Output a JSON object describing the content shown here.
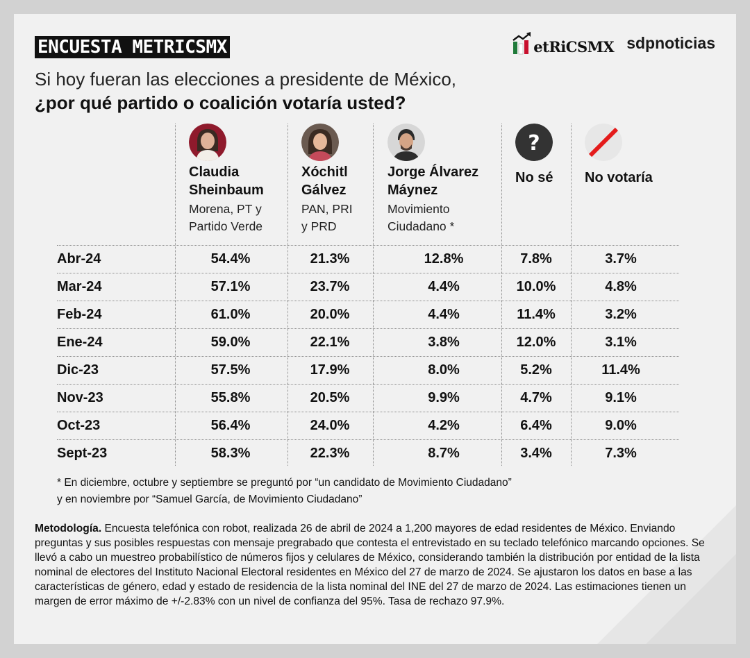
{
  "header": {
    "badge": "ENCUESTA METRICSMX",
    "question_line1": "Si hoy fueran las elecciones a presidente de México,",
    "question_line2": "¿por qué partido o coalición votaría usted?"
  },
  "logos": {
    "metrics": "etRiCSMX",
    "sdp": "sdpnoticias"
  },
  "colors": {
    "badge_bg": "#111111",
    "card_bg": "#f1f1f1",
    "page_bg": "#d2d2d2",
    "mexico_green": "#1f7a3a",
    "mexico_red": "#c8102e",
    "no_votaria_red": "#e41b1b",
    "no_se_dark": "#333333"
  },
  "columns": [
    {
      "name_line1": "Claudia",
      "name_line2": "Sheinbaum",
      "party_line1": "Morena, PT y",
      "party_line2": "Partido Verde",
      "icon": "candidate-photo"
    },
    {
      "name_line1": "Xóchitl",
      "name_line2": "Gálvez",
      "party_line1": "PAN, PRI",
      "party_line2": "y PRD",
      "icon": "candidate-photo"
    },
    {
      "name_line1": "Jorge Álvarez",
      "name_line2": "Máynez",
      "party_line1": "Movimiento",
      "party_line2": "Ciudadano *",
      "icon": "candidate-photo"
    },
    {
      "label": "No sé",
      "icon": "question-icon"
    },
    {
      "label": "No votaría",
      "icon": "slash-icon"
    }
  ],
  "chart_data": {
    "type": "table",
    "title": "Si hoy fueran las elecciones a presidente de México, ¿por qué partido o coalición votaría usted?",
    "series_names": [
      "Claudia Sheinbaum",
      "Xóchitl Gálvez",
      "Jorge Álvarez Máynez",
      "No sé",
      "No votaría"
    ],
    "rows": [
      {
        "month": "Abr-24",
        "values": [
          "54.4%",
          "21.3%",
          "12.8%",
          "7.8%",
          "3.7%"
        ]
      },
      {
        "month": "Mar-24",
        "values": [
          "57.1%",
          "23.7%",
          "4.4%",
          "10.0%",
          "4.8%"
        ]
      },
      {
        "month": "Feb-24",
        "values": [
          "61.0%",
          "20.0%",
          "4.4%",
          "11.4%",
          "3.2%"
        ]
      },
      {
        "month": "Ene-24",
        "values": [
          "59.0%",
          "22.1%",
          "3.8%",
          "12.0%",
          "3.1%"
        ]
      },
      {
        "month": "Dic-23",
        "values": [
          "57.5%",
          "17.9%",
          "8.0%",
          "5.2%",
          "11.4%"
        ]
      },
      {
        "month": "Nov-23",
        "values": [
          "55.8%",
          "20.5%",
          "9.9%",
          "4.7%",
          "9.1%"
        ]
      },
      {
        "month": "Oct-23",
        "values": [
          "56.4%",
          "24.0%",
          "4.2%",
          "6.4%",
          "9.0%"
        ]
      },
      {
        "month": "Sept-23",
        "values": [
          "58.3%",
          "22.3%",
          "8.7%",
          "3.4%",
          "7.3%"
        ]
      }
    ]
  },
  "footnote": {
    "line1": "* En diciembre, octubre y septiembre se preguntó por “un candidato de Movimiento Ciudadano”",
    "line2": "y en noviembre por “Samuel García, de Movimiento Ciudadano”"
  },
  "methodology": {
    "title": "Metodología.",
    "text": " Encuesta telefónica con robot, realizada 26 de abril de 2024 a 1,200 mayores de edad residentes de México. Enviando preguntas y sus posibles respuestas con mensaje pregrabado que contesta el entrevistado en su teclado telefónico marcando opciones. Se llevó a cabo un muestreo probabilístico de números fijos y celulares de México, considerando también la distribución por entidad de la lista nominal de electores del Instituto Nacional Electoral residentes en México del 27 de marzo de 2024. Se ajustaron los datos en base a las características de género, edad y estado de residencia de la lista nominal del INE del 27 de marzo de 2024. Las estimaciones tienen un margen de error máximo de +/-2.83% con un nivel de confianza del 95%. Tasa de rechazo 97.9%."
  }
}
